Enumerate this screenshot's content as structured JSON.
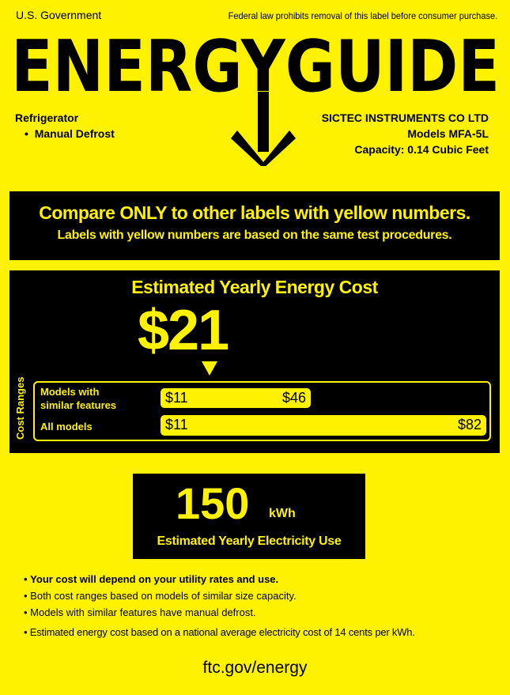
{
  "header": {
    "left": "U.S. Government",
    "right": "Federal law prohibits removal of this label before consumer purchase.",
    "logo_text": "ENERGYGUIDE"
  },
  "product": {
    "type": "Refrigerator",
    "feature": "Manual Defrost",
    "manufacturer": "SICTEC INSTRUMENTS CO LTD",
    "model": "Models MFA-5L",
    "capacity": "Capacity: 0.14 Cubic Feet"
  },
  "compare": {
    "line1": "Compare ONLY to other labels with yellow numbers.",
    "line2": "Labels with yellow numbers are based on the same test procedures."
  },
  "cost": {
    "title": "Estimated Yearly Energy Cost",
    "value": "$21",
    "ranges_label": "Cost Ranges",
    "similar": {
      "label1": "Models with",
      "label2": "similar features",
      "low": "$11",
      "high": "$46"
    },
    "all": {
      "label": "All models",
      "low": "$11",
      "high": "$82"
    }
  },
  "electricity": {
    "value": "150",
    "unit": "kWh",
    "label": "Estimated Yearly Electricity Use"
  },
  "notes": [
    "Your cost will depend on your utility rates and use.",
    "Both cost ranges based on models of similar size capacity.",
    "Models with similar features have manual defrost.",
    "Estimated energy cost based on a national average electricity cost of 14 cents per kWh."
  ],
  "footer": "ftc.gov/energy",
  "colors": {
    "background": "#fff200",
    "box": "#000000"
  }
}
